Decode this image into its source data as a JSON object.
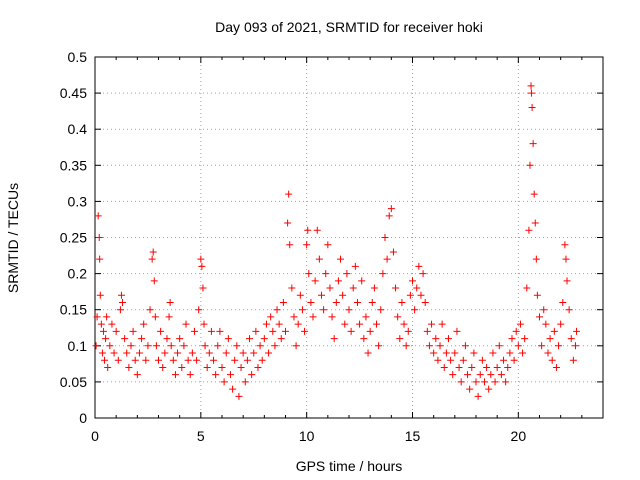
{
  "chart_data": {
    "type": "scatter",
    "title": "Day 093 of 2021, SRMTID for receiver hoki",
    "xlabel": "GPS time / hours",
    "ylabel": "SRMTID / TECUs",
    "xlim": [
      0,
      24
    ],
    "ylim": [
      0,
      0.5
    ],
    "xticks": [
      0,
      5,
      10,
      15,
      20
    ],
    "xtick_labels": [
      "0",
      "5",
      "10",
      "15",
      "20"
    ],
    "yticks": [
      0,
      0.05,
      0.1,
      0.15,
      0.2,
      0.25,
      0.3,
      0.35,
      0.4,
      0.45,
      0.5
    ],
    "ytick_labels": [
      "0",
      "0.05",
      "0.1",
      "0.15",
      "0.2",
      "0.25",
      "0.3",
      "0.35",
      "0.4",
      "0.45",
      "0.5"
    ],
    "grid": true,
    "marker": "+",
    "marker_color": "#ff0000",
    "series": [
      {
        "name": "SRMTID",
        "points": [
          [
            0.05,
            0.1
          ],
          [
            0.1,
            0.14
          ],
          [
            0.15,
            0.28
          ],
          [
            0.2,
            0.25
          ],
          [
            0.22,
            0.22
          ],
          [
            0.25,
            0.17
          ],
          [
            0.3,
            0.13
          ],
          [
            0.35,
            0.09
          ],
          [
            0.4,
            0.12
          ],
          [
            0.45,
            0.08
          ],
          [
            0.5,
            0.11
          ],
          [
            0.55,
            0.14
          ],
          [
            0.6,
            0.07
          ],
          [
            0.7,
            0.1
          ],
          [
            0.8,
            0.13
          ],
          [
            0.9,
            0.09
          ],
          [
            1.0,
            0.12
          ],
          [
            1.1,
            0.08
          ],
          [
            1.2,
            0.15
          ],
          [
            1.25,
            0.17
          ],
          [
            1.3,
            0.16
          ],
          [
            1.4,
            0.11
          ],
          [
            1.5,
            0.09
          ],
          [
            1.6,
            0.07
          ],
          [
            1.7,
            0.1
          ],
          [
            1.8,
            0.12
          ],
          [
            1.9,
            0.08
          ],
          [
            2.0,
            0.06
          ],
          [
            2.1,
            0.09
          ],
          [
            2.2,
            0.11
          ],
          [
            2.3,
            0.13
          ],
          [
            2.4,
            0.08
          ],
          [
            2.5,
            0.1
          ],
          [
            2.6,
            0.15
          ],
          [
            2.7,
            0.22
          ],
          [
            2.75,
            0.23
          ],
          [
            2.8,
            0.19
          ],
          [
            2.85,
            0.14
          ],
          [
            2.9,
            0.1
          ],
          [
            3.0,
            0.08
          ],
          [
            3.1,
            0.12
          ],
          [
            3.2,
            0.07
          ],
          [
            3.3,
            0.09
          ],
          [
            3.4,
            0.11
          ],
          [
            3.5,
            0.14
          ],
          [
            3.55,
            0.16
          ],
          [
            3.6,
            0.1
          ],
          [
            3.7,
            0.08
          ],
          [
            3.8,
            0.06
          ],
          [
            3.9,
            0.09
          ],
          [
            4.0,
            0.11
          ],
          [
            4.1,
            0.07
          ],
          [
            4.2,
            0.1
          ],
          [
            4.3,
            0.13
          ],
          [
            4.4,
            0.08
          ],
          [
            4.5,
            0.06
          ],
          [
            4.6,
            0.09
          ],
          [
            4.7,
            0.12
          ],
          [
            4.8,
            0.08
          ],
          [
            4.9,
            0.15
          ],
          [
            5.0,
            0.22
          ],
          [
            5.05,
            0.21
          ],
          [
            5.1,
            0.18
          ],
          [
            5.15,
            0.13
          ],
          [
            5.2,
            0.1
          ],
          [
            5.3,
            0.07
          ],
          [
            5.4,
            0.09
          ],
          [
            5.5,
            0.12
          ],
          [
            5.6,
            0.08
          ],
          [
            5.7,
            0.06
          ],
          [
            5.8,
            0.1
          ],
          [
            5.9,
            0.12
          ],
          [
            6.0,
            0.07
          ],
          [
            6.1,
            0.05
          ],
          [
            6.2,
            0.09
          ],
          [
            6.3,
            0.11
          ],
          [
            6.4,
            0.06
          ],
          [
            6.5,
            0.04
          ],
          [
            6.6,
            0.08
          ],
          [
            6.7,
            0.1
          ],
          [
            6.8,
            0.03
          ],
          [
            6.9,
            0.07
          ],
          [
            7.0,
            0.09
          ],
          [
            7.1,
            0.05
          ],
          [
            7.2,
            0.08
          ],
          [
            7.3,
            0.11
          ],
          [
            7.4,
            0.06
          ],
          [
            7.5,
            0.09
          ],
          [
            7.6,
            0.12
          ],
          [
            7.7,
            0.07
          ],
          [
            7.8,
            0.1
          ],
          [
            7.9,
            0.08
          ],
          [
            8.0,
            0.11
          ],
          [
            8.1,
            0.13
          ],
          [
            8.2,
            0.09
          ],
          [
            8.3,
            0.14
          ],
          [
            8.4,
            0.12
          ],
          [
            8.5,
            0.1
          ],
          [
            8.6,
            0.15
          ],
          [
            8.7,
            0.13
          ],
          [
            8.8,
            0.11
          ],
          [
            8.9,
            0.16
          ],
          [
            9.0,
            0.12
          ],
          [
            9.1,
            0.27
          ],
          [
            9.15,
            0.31
          ],
          [
            9.2,
            0.24
          ],
          [
            9.3,
            0.18
          ],
          [
            9.4,
            0.14
          ],
          [
            9.5,
            0.1
          ],
          [
            9.6,
            0.13
          ],
          [
            9.7,
            0.17
          ],
          [
            9.8,
            0.15
          ],
          [
            9.9,
            0.12
          ],
          [
            10.0,
            0.24
          ],
          [
            10.05,
            0.26
          ],
          [
            10.1,
            0.2
          ],
          [
            10.2,
            0.16
          ],
          [
            10.3,
            0.14
          ],
          [
            10.4,
            0.19
          ],
          [
            10.5,
            0.26
          ],
          [
            10.6,
            0.22
          ],
          [
            10.7,
            0.17
          ],
          [
            10.8,
            0.15
          ],
          [
            10.9,
            0.2
          ],
          [
            11.0,
            0.24
          ],
          [
            11.1,
            0.18
          ],
          [
            11.2,
            0.14
          ],
          [
            11.3,
            0.11
          ],
          [
            11.4,
            0.16
          ],
          [
            11.5,
            0.19
          ],
          [
            11.6,
            0.22
          ],
          [
            11.7,
            0.17
          ],
          [
            11.8,
            0.13
          ],
          [
            11.9,
            0.2
          ],
          [
            12.0,
            0.15
          ],
          [
            12.1,
            0.12
          ],
          [
            12.2,
            0.18
          ],
          [
            12.3,
            0.21
          ],
          [
            12.4,
            0.16
          ],
          [
            12.5,
            0.13
          ],
          [
            12.6,
            0.19
          ],
          [
            12.7,
            0.11
          ],
          [
            12.8,
            0.14
          ],
          [
            12.9,
            0.09
          ],
          [
            13.0,
            0.12
          ],
          [
            13.1,
            0.16
          ],
          [
            13.2,
            0.18
          ],
          [
            13.3,
            0.13
          ],
          [
            13.4,
            0.1
          ],
          [
            13.5,
            0.15
          ],
          [
            13.6,
            0.2
          ],
          [
            13.7,
            0.25
          ],
          [
            13.8,
            0.22
          ],
          [
            13.9,
            0.28
          ],
          [
            14.0,
            0.29
          ],
          [
            14.1,
            0.23
          ],
          [
            14.2,
            0.18
          ],
          [
            14.3,
            0.14
          ],
          [
            14.4,
            0.11
          ],
          [
            14.5,
            0.16
          ],
          [
            14.6,
            0.13
          ],
          [
            14.7,
            0.1
          ],
          [
            14.8,
            0.12
          ],
          [
            14.9,
            0.17
          ],
          [
            15.0,
            0.19
          ],
          [
            15.1,
            0.15
          ],
          [
            15.2,
            0.18
          ],
          [
            15.3,
            0.21
          ],
          [
            15.4,
            0.17
          ],
          [
            15.5,
            0.2
          ],
          [
            15.6,
            0.16
          ],
          [
            15.7,
            0.12
          ],
          [
            15.8,
            0.1
          ],
          [
            15.9,
            0.13
          ],
          [
            16.0,
            0.09
          ],
          [
            16.1,
            0.11
          ],
          [
            16.2,
            0.08
          ],
          [
            16.3,
            0.1
          ],
          [
            16.4,
            0.13
          ],
          [
            16.5,
            0.07
          ],
          [
            16.6,
            0.09
          ],
          [
            16.7,
            0.11
          ],
          [
            16.8,
            0.08
          ],
          [
            16.9,
            0.06
          ],
          [
            17.0,
            0.09
          ],
          [
            17.1,
            0.12
          ],
          [
            17.2,
            0.07
          ],
          [
            17.3,
            0.05
          ],
          [
            17.4,
            0.08
          ],
          [
            17.5,
            0.1
          ],
          [
            17.6,
            0.06
          ],
          [
            17.7,
            0.04
          ],
          [
            17.8,
            0.07
          ],
          [
            17.9,
            0.09
          ],
          [
            18.0,
            0.05
          ],
          [
            18.1,
            0.03
          ],
          [
            18.2,
            0.06
          ],
          [
            18.3,
            0.08
          ],
          [
            18.4,
            0.05
          ],
          [
            18.5,
            0.07
          ],
          [
            18.6,
            0.04
          ],
          [
            18.7,
            0.06
          ],
          [
            18.8,
            0.09
          ],
          [
            18.9,
            0.05
          ],
          [
            19.0,
            0.07
          ],
          [
            19.1,
            0.1
          ],
          [
            19.2,
            0.06
          ],
          [
            19.3,
            0.08
          ],
          [
            19.4,
            0.05
          ],
          [
            19.5,
            0.07
          ],
          [
            19.6,
            0.09
          ],
          [
            19.7,
            0.11
          ],
          [
            19.8,
            0.08
          ],
          [
            19.9,
            0.12
          ],
          [
            20.0,
            0.1
          ],
          [
            20.1,
            0.13
          ],
          [
            20.2,
            0.09
          ],
          [
            20.3,
            0.11
          ],
          [
            20.4,
            0.18
          ],
          [
            20.5,
            0.26
          ],
          [
            20.55,
            0.35
          ],
          [
            20.6,
            0.46
          ],
          [
            20.62,
            0.45
          ],
          [
            20.65,
            0.43
          ],
          [
            20.7,
            0.38
          ],
          [
            20.75,
            0.31
          ],
          [
            20.8,
            0.27
          ],
          [
            20.85,
            0.22
          ],
          [
            20.9,
            0.17
          ],
          [
            21.0,
            0.14
          ],
          [
            21.1,
            0.1
          ],
          [
            21.2,
            0.15
          ],
          [
            21.3,
            0.13
          ],
          [
            21.4,
            0.09
          ],
          [
            21.5,
            0.11
          ],
          [
            21.6,
            0.08
          ],
          [
            21.7,
            0.12
          ],
          [
            21.8,
            0.07
          ],
          [
            21.9,
            0.1
          ],
          [
            22.0,
            0.13
          ],
          [
            22.1,
            0.16
          ],
          [
            22.2,
            0.24
          ],
          [
            22.25,
            0.22
          ],
          [
            22.3,
            0.19
          ],
          [
            22.4,
            0.15
          ],
          [
            22.5,
            0.11
          ],
          [
            22.6,
            0.08
          ],
          [
            22.7,
            0.1
          ],
          [
            22.75,
            0.12
          ]
        ]
      }
    ]
  }
}
